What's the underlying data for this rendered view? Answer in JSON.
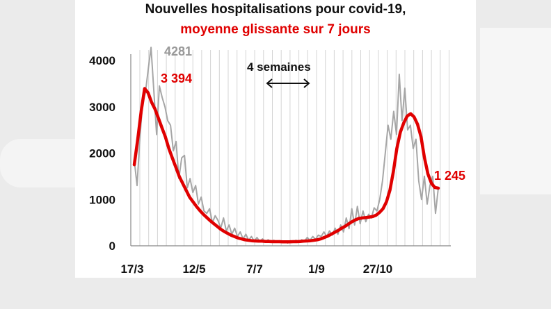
{
  "chart_data": {
    "type": "line",
    "title": "Nouvelles hospitalisations pour covid-19,",
    "subtitle": "moyenne glissante sur 7 jours",
    "x_tick_labels": [
      "17/3",
      "12/5",
      "7/7",
      "1/9",
      "27/10"
    ],
    "y_tick_labels": [
      "0",
      "1000",
      "2000",
      "3000",
      "4000"
    ],
    "ylim": [
      0,
      4000
    ],
    "grid": "vertical",
    "x_start": "17/3",
    "series": [
      {
        "color": "#a6a6a6",
        "values": [
          1850,
          1300,
          2300,
          3100,
          3300,
          3800,
          4281,
          3350,
          2400,
          3450,
          3200,
          3000,
          2700,
          2600,
          2050,
          2250,
          1450,
          1900,
          1950,
          1250,
          1450,
          1150,
          1300,
          900,
          1050,
          750,
          700,
          800,
          500,
          650,
          550,
          380,
          600,
          320,
          450,
          250,
          380,
          200,
          300,
          150,
          250,
          120,
          200,
          100,
          180,
          90,
          150,
          80,
          130,
          80,
          120,
          80,
          110,
          70,
          100,
          60,
          110,
          80,
          120,
          70,
          130,
          100,
          180,
          120,
          200,
          140,
          230,
          200,
          300,
          200,
          320,
          230,
          380,
          250,
          450,
          300,
          600,
          370,
          800,
          450,
          850,
          480,
          750,
          520,
          680,
          600,
          820,
          750,
          1000,
          1400,
          2000,
          2600,
          2300,
          2900,
          2400,
          3700,
          2700,
          3400,
          2500,
          2600,
          2100,
          2300,
          1400,
          1000,
          1500,
          900,
          1300,
          1500,
          700,
          1245
        ],
        "color_hex": "#a6a6a6"
      },
      {
        "color": "#e00000",
        "values": [
          1750,
          2300,
          2900,
          3394,
          3300,
          3100,
          2950,
          2750,
          2550,
          2350,
          2100,
          1900,
          1700,
          1500,
          1350,
          1200,
          1050,
          950,
          850,
          760,
          680,
          610,
          540,
          480,
          420,
          360,
          310,
          270,
          230,
          200,
          170,
          150,
          130,
          120,
          110,
          105,
          100,
          100,
          95,
          95,
          90,
          90,
          90,
          85,
          85,
          85,
          90,
          90,
          95,
          100,
          105,
          110,
          120,
          130,
          150,
          180,
          210,
          250,
          290,
          330,
          380,
          420,
          470,
          520,
          560,
          590,
          600,
          610,
          620,
          630,
          660,
          720,
          800,
          950,
          1200,
          1600,
          2100,
          2450,
          2650,
          2800,
          2850,
          2780,
          2620,
          2350,
          1900,
          1550,
          1350,
          1260,
          1245
        ]
      }
    ],
    "annotations": {
      "peak_gray": "4281",
      "peak_red": "3 394",
      "last_red": "1 245",
      "span": "4 semaines"
    }
  }
}
